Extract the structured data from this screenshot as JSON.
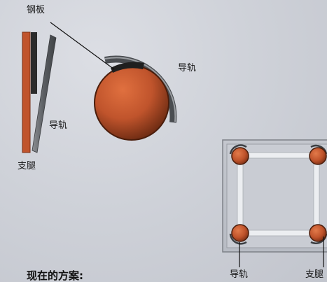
{
  "labels": {
    "steel_plate": "钢板",
    "guide_rail_right": "导轨",
    "guide_rail_left": "导轨",
    "leg_left": "支腿",
    "guide_rail_bottom": "导轨",
    "leg_bottom": "支腿"
  },
  "heading": "现在的方案:",
  "colors": {
    "leg": "#c0542c",
    "rail": "#6b6e72",
    "plate": "#2a2a2a",
    "frame": "#e4e6ea",
    "background": "#cfd2d9"
  }
}
